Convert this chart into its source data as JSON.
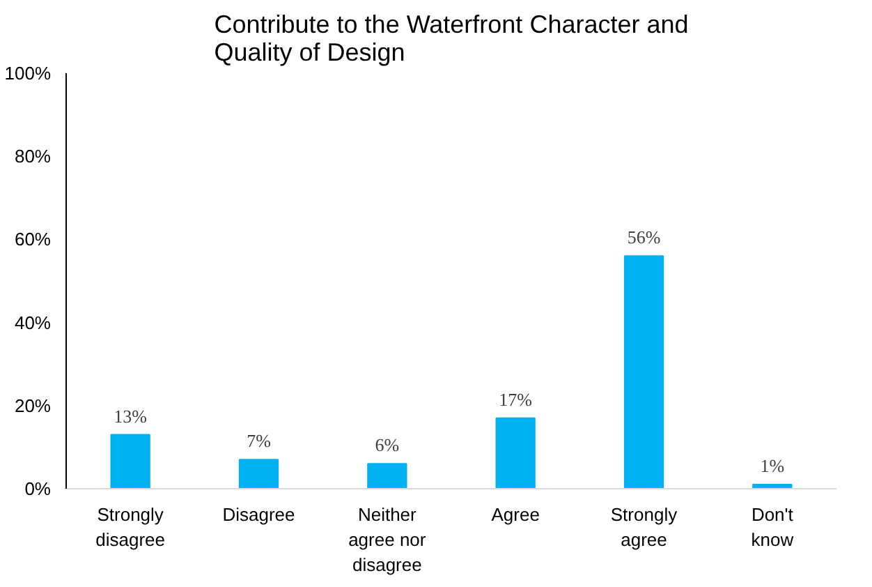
{
  "chart_data": {
    "type": "bar",
    "title": "Contribute to the Waterfront Character and Quality of Design",
    "categories": [
      "Strongly disagree",
      "Disagree",
      "Neither agree nor disagree",
      "Agree",
      "Strongly agree",
      "Don't know"
    ],
    "values": [
      13,
      7,
      6,
      17,
      56,
      1
    ],
    "value_labels": [
      "13%",
      "7%",
      "6%",
      "17%",
      "56%",
      "1%"
    ],
    "color": "#00b0f0",
    "ylim": [
      0,
      100
    ],
    "yticks": [
      {
        "value": 0,
        "label": "0%"
      },
      {
        "value": 20,
        "label": "20%"
      },
      {
        "value": 40,
        "label": "40%"
      },
      {
        "value": 60,
        "label": "60%"
      },
      {
        "value": 80,
        "label": "80%"
      },
      {
        "value": 100,
        "label": "100%"
      }
    ],
    "grid": false
  }
}
